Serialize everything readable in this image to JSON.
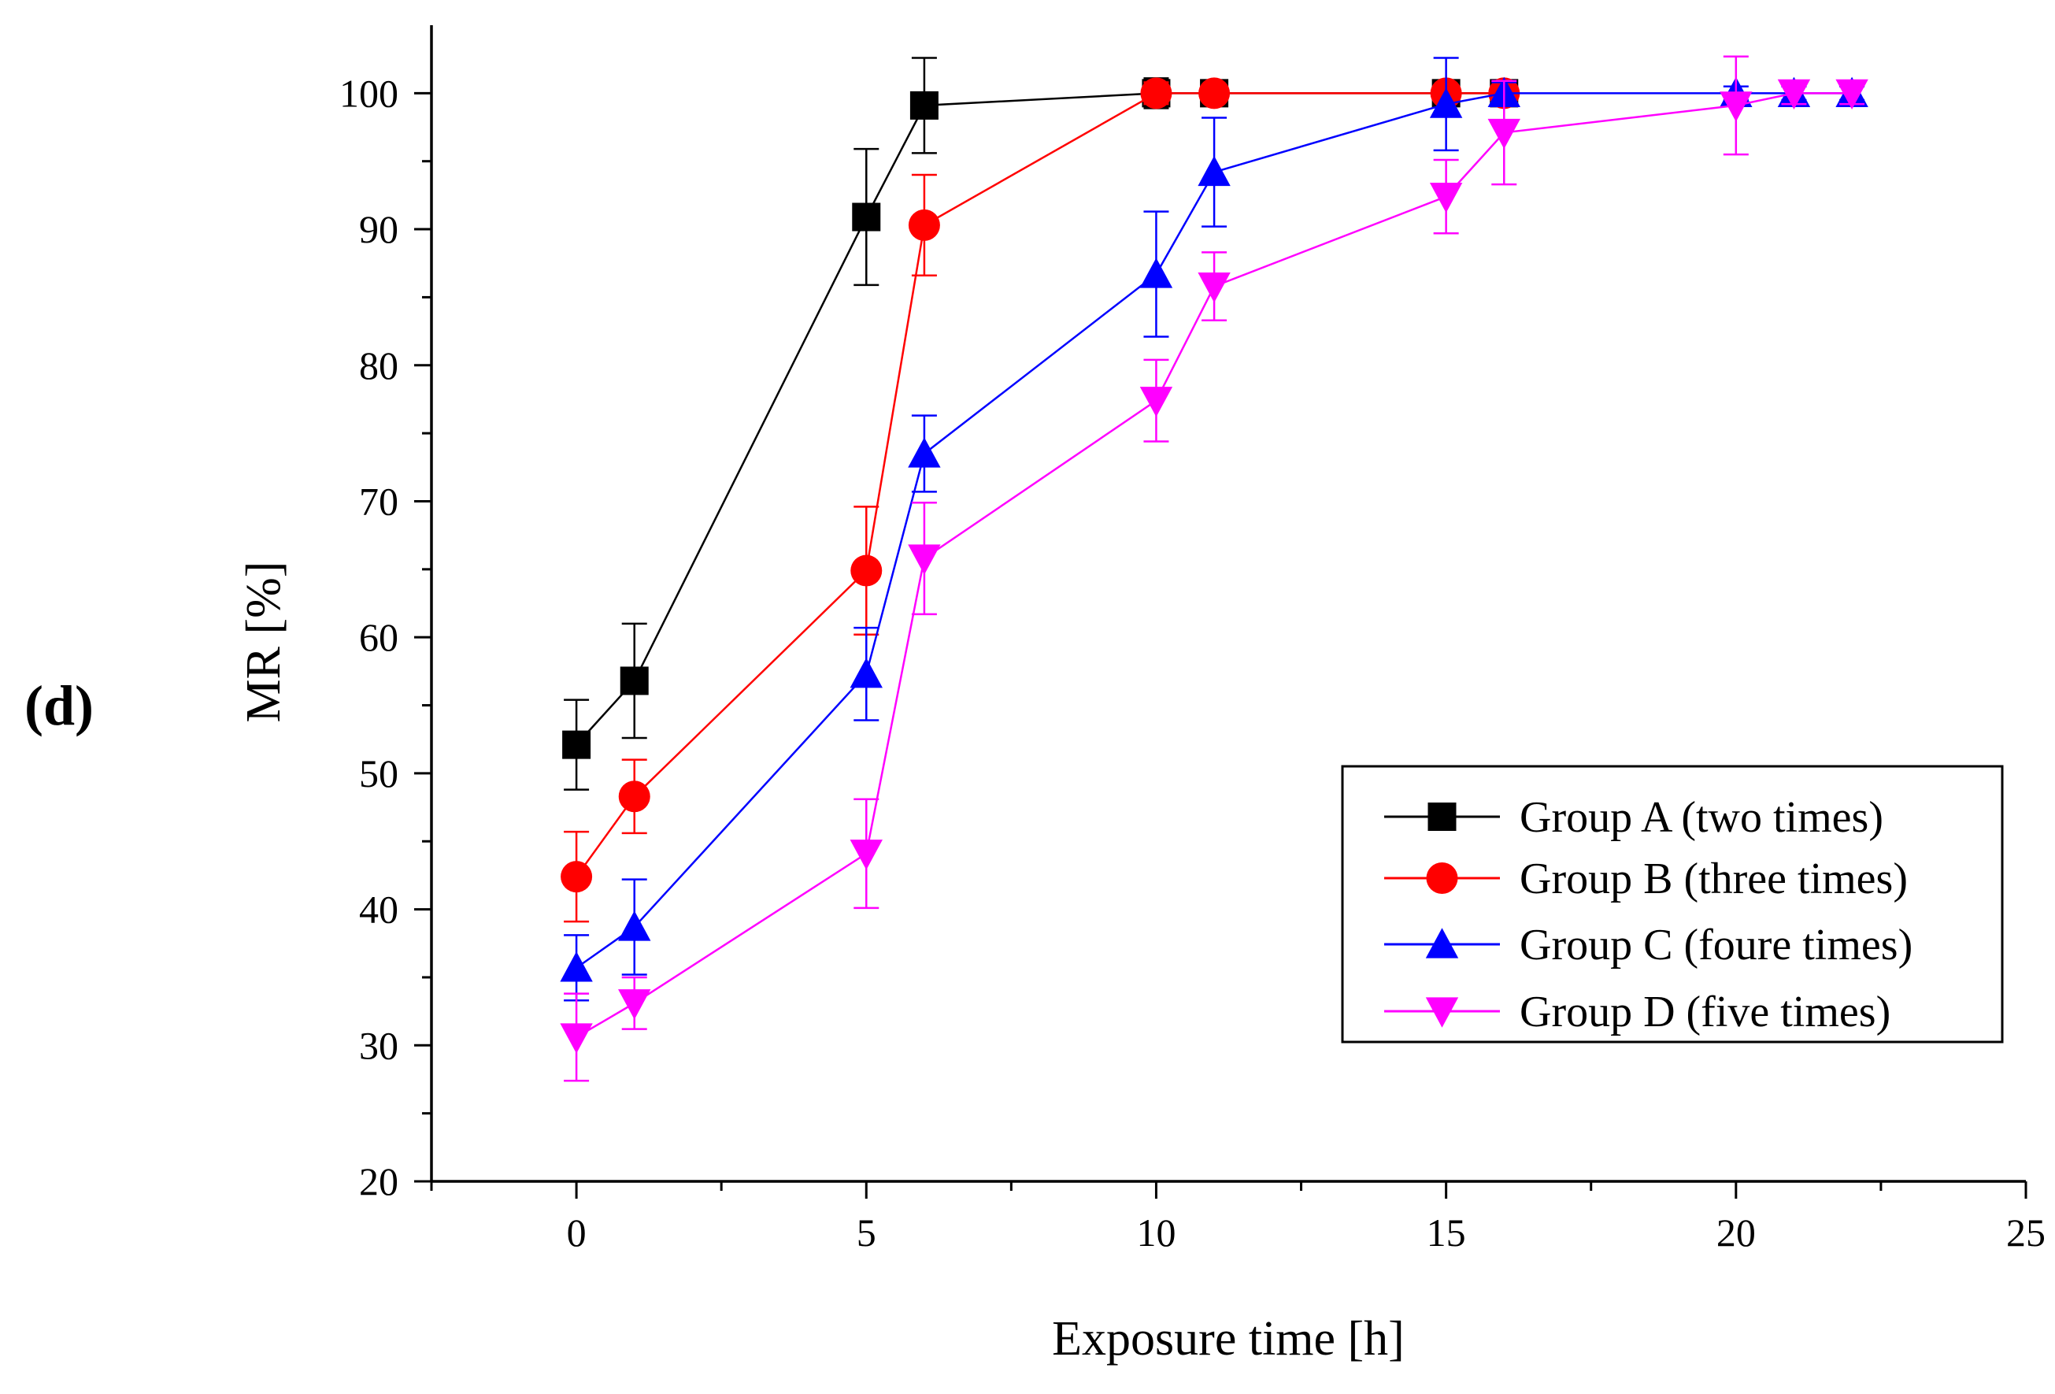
{
  "chart_data": {
    "type": "line",
    "panel_label": "(d)",
    "xlabel": "Exposure time [h]",
    "ylabel": "MR [%]",
    "xlim": [
      -2.5,
      25
    ],
    "ylim": [
      20,
      105
    ],
    "xticks": [
      0,
      5,
      10,
      15,
      20,
      25
    ],
    "yticks": [
      20,
      30,
      40,
      50,
      60,
      70,
      80,
      90,
      100
    ],
    "xtick_labels": [
      "0",
      "5",
      "10",
      "15",
      "20",
      "25"
    ],
    "ytick_labels": [
      "20",
      "30",
      "40",
      "50",
      "60",
      "70",
      "80",
      "90",
      "100"
    ],
    "grid": false,
    "legend_position": "center-right",
    "series": [
      {
        "name": "Group A (two times)",
        "color": "#000000",
        "marker": "square",
        "x": [
          0,
          1,
          5,
          6,
          10,
          11,
          15,
          16
        ],
        "y": [
          52.1,
          56.8,
          90.9,
          99.1,
          100,
          100,
          100,
          100
        ],
        "err": [
          3.3,
          4.2,
          5.0,
          3.5,
          1.1,
          0.5,
          0.5,
          0.5
        ]
      },
      {
        "name": "Group B (three times)",
        "color": "#ff0000",
        "marker": "circle",
        "x": [
          0,
          1,
          5,
          6,
          10,
          11,
          15,
          16
        ],
        "y": [
          42.4,
          48.3,
          64.9,
          90.3,
          100,
          100,
          100,
          100
        ],
        "err": [
          3.3,
          2.7,
          4.7,
          3.7,
          0.8,
          0.5,
          0.5,
          0.5
        ]
      },
      {
        "name": "Group C (foure times)",
        "color": "#0000ff",
        "marker": "triangle-up",
        "x": [
          0,
          1,
          5,
          6,
          10,
          11,
          15,
          16,
          20,
          21,
          22
        ],
        "y": [
          35.7,
          38.7,
          57.3,
          73.5,
          86.7,
          94.2,
          99.2,
          100,
          100,
          100,
          100
        ],
        "err": [
          2.4,
          3.5,
          3.4,
          2.8,
          4.6,
          4.0,
          3.4,
          0.8,
          0.5,
          0.5,
          0.5
        ]
      },
      {
        "name": "Group D (five times)",
        "color": "#ff00ff",
        "marker": "triangle-down",
        "x": [
          0,
          1,
          5,
          6,
          10,
          11,
          15,
          16,
          20,
          21,
          22
        ],
        "y": [
          30.6,
          33.1,
          44.1,
          65.8,
          77.4,
          85.8,
          92.4,
          97.1,
          99.1,
          100,
          100
        ],
        "err": [
          3.2,
          1.9,
          4.0,
          4.1,
          3.0,
          2.5,
          2.7,
          3.8,
          3.6,
          0.8,
          0.8
        ]
      }
    ]
  }
}
